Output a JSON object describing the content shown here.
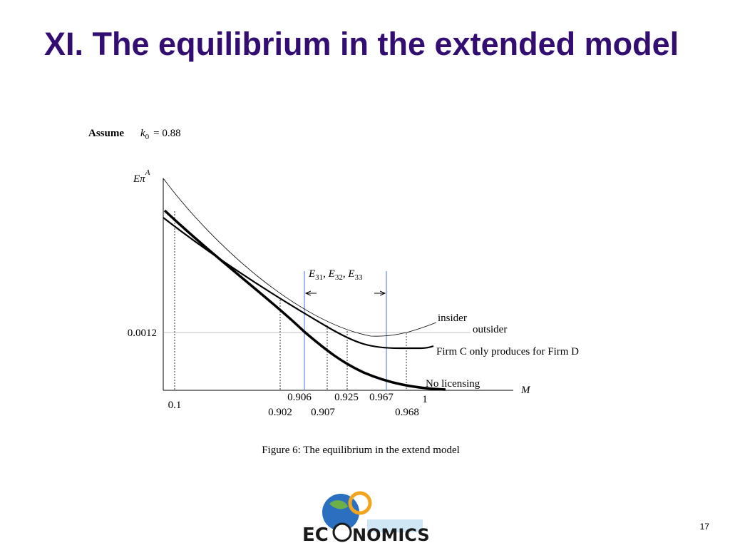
{
  "title": "XI. The equilibrium in the extended model",
  "assumption": {
    "word": "Assume",
    "symbol": "k",
    "subscript": "0",
    "expression": "= 0.88"
  },
  "figure": {
    "y_axis_label": {
      "symbol": "Eπ",
      "superscript": "A"
    },
    "x_axis_label": "M",
    "y_tick": "0.0012",
    "x_tick_left": "0.1",
    "x_ticks_upper": [
      "0.906",
      "0.925",
      "0.967",
      "1"
    ],
    "x_ticks_lower": [
      "0.902",
      "0.907",
      "0.968"
    ],
    "equilibria": [
      {
        "symbol": "E",
        "subscript": "31"
      },
      {
        "symbol": "E",
        "subscript": "32"
      },
      {
        "symbol": "E",
        "subscript": "33"
      }
    ],
    "separator": ",",
    "curve_labels": {
      "insider": "insider",
      "outsider": "outsider",
      "firm_c": "Firm C only produces for Firm D",
      "no_licensing": "No licensing"
    },
    "caption": "Figure 6: The equilibrium in the extend model"
  },
  "logo": {
    "left": "EC",
    "right": "NOMICS"
  },
  "page_number": "17"
}
